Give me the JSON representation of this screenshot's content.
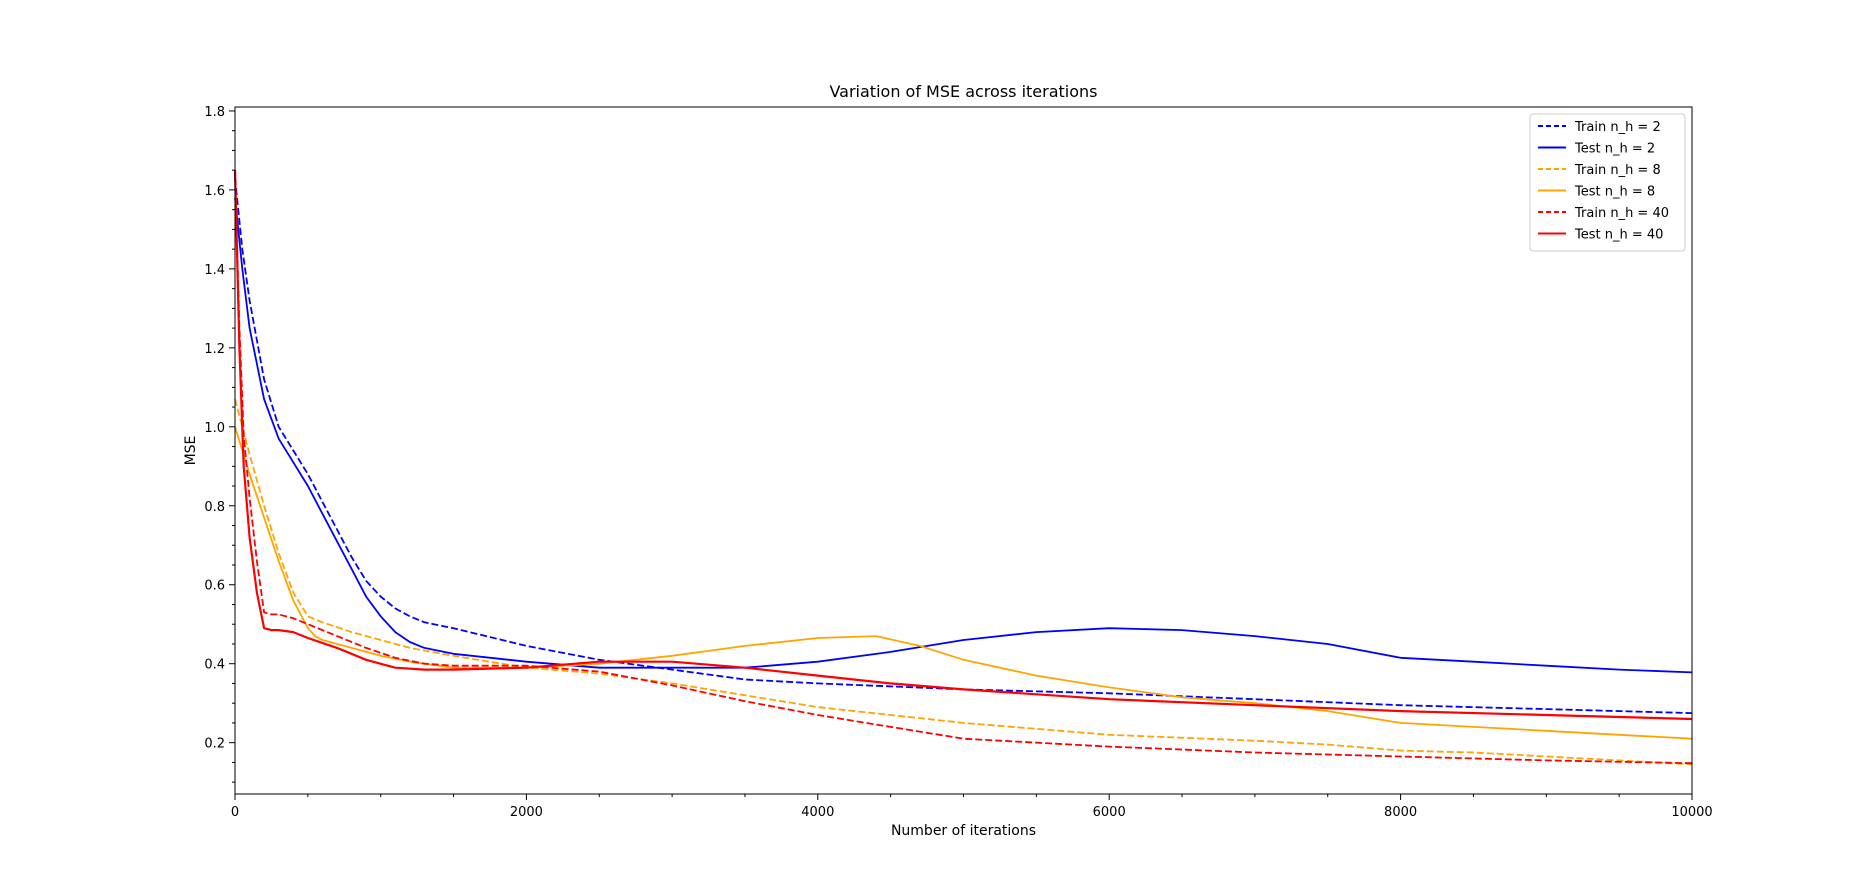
{
  "chart_data": {
    "type": "line",
    "title": "Variation of MSE across iterations",
    "xlabel": "Number of iterations",
    "ylabel": "MSE",
    "xlim": [
      0,
      10000
    ],
    "ylim": [
      0.07,
      1.81
    ],
    "xticks": [
      0,
      2000,
      4000,
      6000,
      8000,
      10000
    ],
    "xtick_labels": [
      "0",
      "2000",
      "4000",
      "6000",
      "8000",
      "10000"
    ],
    "yticks": [
      0.2,
      0.4,
      0.6,
      0.8,
      1.0,
      1.2,
      1.4,
      1.6,
      1.8
    ],
    "ytick_labels": [
      "0.2",
      "0.4",
      "0.6",
      "0.8",
      "1.0",
      "1.2",
      "1.4",
      "1.6",
      "1.8"
    ],
    "grid": false,
    "legend_position": "top-right",
    "series": [
      {
        "name": "Train n_h = 2",
        "color": "#0000ff",
        "dashed": true,
        "x": [
          0,
          50,
          100,
          200,
          300,
          400,
          500,
          600,
          700,
          800,
          900,
          1000,
          1100,
          1200,
          1300,
          1500,
          2000,
          2500,
          3000,
          3500,
          4000,
          5000,
          6000,
          7000,
          8000,
          9000,
          10000
        ],
        "y": [
          1.63,
          1.45,
          1.32,
          1.12,
          1.0,
          0.94,
          0.88,
          0.81,
          0.74,
          0.67,
          0.61,
          0.57,
          0.54,
          0.52,
          0.505,
          0.49,
          0.445,
          0.41,
          0.385,
          0.36,
          0.35,
          0.335,
          0.325,
          0.31,
          0.295,
          0.285,
          0.275
        ]
      },
      {
        "name": "Test n_h = 2",
        "color": "#0000ff",
        "dashed": false,
        "x": [
          0,
          50,
          100,
          200,
          300,
          400,
          500,
          600,
          700,
          800,
          900,
          1000,
          1100,
          1200,
          1300,
          1500,
          2000,
          2500,
          3000,
          3500,
          4000,
          4500,
          5000,
          5500,
          6000,
          6500,
          7000,
          7500,
          8000,
          8500,
          9000,
          9500,
          10000
        ],
        "y": [
          1.58,
          1.4,
          1.25,
          1.07,
          0.97,
          0.91,
          0.85,
          0.78,
          0.71,
          0.64,
          0.57,
          0.52,
          0.48,
          0.455,
          0.44,
          0.425,
          0.405,
          0.39,
          0.39,
          0.39,
          0.405,
          0.43,
          0.46,
          0.48,
          0.49,
          0.485,
          0.47,
          0.45,
          0.415,
          0.405,
          0.395,
          0.385,
          0.378
        ]
      },
      {
        "name": "Train n_h = 8",
        "color": "#ffa500",
        "dashed": true,
        "x": [
          0,
          50,
          100,
          200,
          300,
          400,
          500,
          600,
          800,
          1000,
          1200,
          1500,
          2000,
          2500,
          3000,
          3500,
          4000,
          4500,
          5000,
          6000,
          7000,
          7500,
          8000,
          8500,
          9000,
          9500,
          10000
        ],
        "y": [
          1.07,
          1.0,
          0.93,
          0.8,
          0.68,
          0.58,
          0.52,
          0.505,
          0.48,
          0.46,
          0.44,
          0.42,
          0.39,
          0.375,
          0.35,
          0.32,
          0.29,
          0.27,
          0.25,
          0.22,
          0.205,
          0.195,
          0.18,
          0.175,
          0.165,
          0.155,
          0.145
        ]
      },
      {
        "name": "Test n_h = 8",
        "color": "#ffa500",
        "dashed": false,
        "x": [
          0,
          50,
          100,
          200,
          300,
          400,
          500,
          550,
          600,
          800,
          1000,
          1200,
          1500,
          2000,
          2500,
          3000,
          3500,
          4000,
          4400,
          4700,
          5000,
          5500,
          6000,
          6500,
          7000,
          7500,
          8000,
          8500,
          9000,
          9500,
          10000
        ],
        "y": [
          1.0,
          0.94,
          0.88,
          0.77,
          0.66,
          0.56,
          0.49,
          0.47,
          0.46,
          0.44,
          0.42,
          0.405,
          0.39,
          0.39,
          0.4,
          0.42,
          0.445,
          0.465,
          0.47,
          0.445,
          0.41,
          0.37,
          0.34,
          0.315,
          0.3,
          0.28,
          0.25,
          0.24,
          0.23,
          0.22,
          0.21
        ]
      },
      {
        "name": "Train n_h = 40",
        "color": "#ff0000",
        "dashed": true,
        "x": [
          0,
          30,
          60,
          100,
          150,
          200,
          250,
          300,
          400,
          500,
          700,
          900,
          1100,
          1300,
          1500,
          2000,
          2500,
          3000,
          3500,
          4000,
          4500,
          5000,
          6000,
          7000,
          8000,
          9000,
          10000
        ],
        "y": [
          1.65,
          1.25,
          0.98,
          0.82,
          0.66,
          0.53,
          0.525,
          0.525,
          0.515,
          0.5,
          0.47,
          0.44,
          0.415,
          0.4,
          0.395,
          0.395,
          0.38,
          0.345,
          0.305,
          0.27,
          0.24,
          0.21,
          0.19,
          0.175,
          0.165,
          0.155,
          0.148
        ]
      },
      {
        "name": "Test n_h = 40",
        "color": "#ff0000",
        "dashed": false,
        "x": [
          0,
          30,
          60,
          100,
          150,
          200,
          250,
          300,
          400,
          500,
          700,
          900,
          1100,
          1300,
          1500,
          2000,
          2500,
          3000,
          3500,
          4000,
          4500,
          5000,
          6000,
          7000,
          8000,
          9000,
          10000
        ],
        "y": [
          1.65,
          1.2,
          0.9,
          0.72,
          0.58,
          0.49,
          0.485,
          0.485,
          0.48,
          0.465,
          0.44,
          0.41,
          0.39,
          0.385,
          0.385,
          0.39,
          0.405,
          0.405,
          0.39,
          0.37,
          0.35,
          0.335,
          0.31,
          0.295,
          0.28,
          0.27,
          0.26
        ]
      }
    ]
  }
}
